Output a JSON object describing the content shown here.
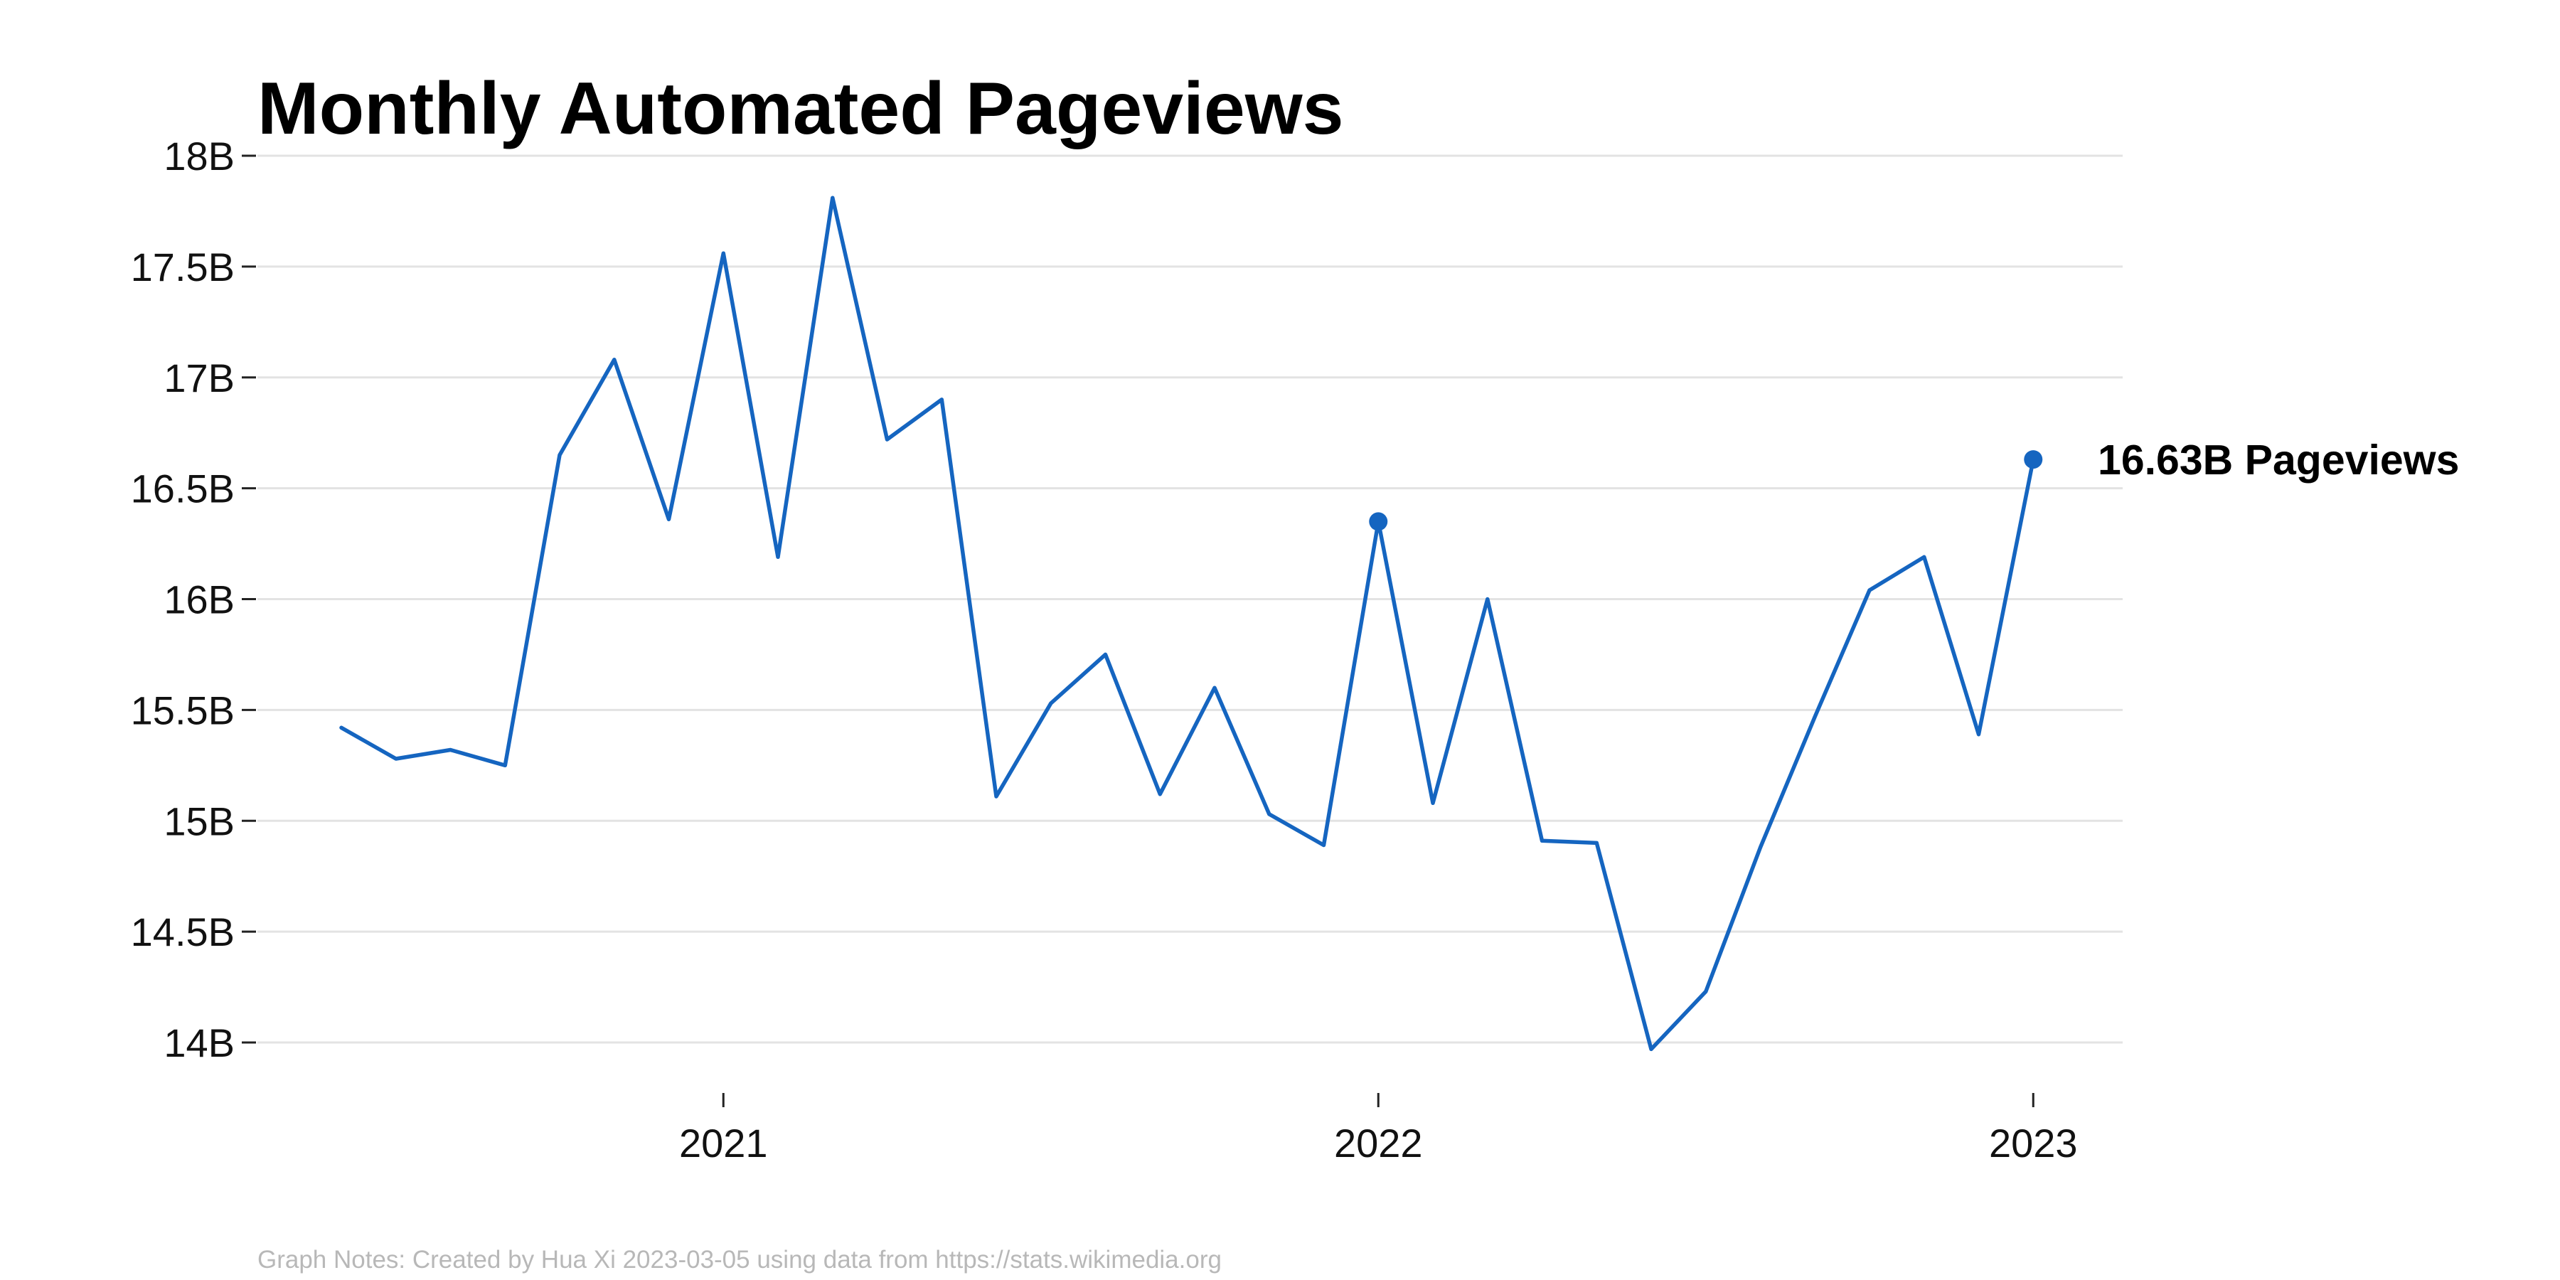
{
  "chart_data": {
    "type": "line",
    "title": "Monthly Automated Pageviews",
    "xlabel": "",
    "ylabel": "",
    "x": [
      "2020-06",
      "2020-07",
      "2020-08",
      "2020-09",
      "2020-10",
      "2020-11",
      "2020-12",
      "2021-01",
      "2021-02",
      "2021-03",
      "2021-04",
      "2021-05",
      "2021-06",
      "2021-07",
      "2021-08",
      "2021-09",
      "2021-10",
      "2021-11",
      "2021-12",
      "2022-01",
      "2022-02",
      "2022-03",
      "2022-04",
      "2022-05",
      "2022-06",
      "2022-07",
      "2022-08",
      "2022-09",
      "2022-10",
      "2022-11",
      "2022-12",
      "2023-01"
    ],
    "series": [
      {
        "values": [
          15.42,
          15.28,
          15.32,
          15.25,
          16.65,
          17.08,
          16.36,
          17.56,
          16.19,
          17.81,
          16.72,
          16.9,
          15.11,
          15.53,
          15.75,
          15.12,
          15.6,
          15.03,
          14.89,
          16.35,
          15.08,
          16.0,
          14.91,
          14.9,
          13.97,
          14.23,
          14.88,
          15.47,
          16.04,
          16.19,
          15.39,
          16.63
        ],
        "color": "#1565c0"
      }
    ],
    "ylim": [
      14,
      18
    ],
    "y_ticks": [
      14,
      14.5,
      15,
      15.5,
      16,
      16.5,
      17,
      17.5,
      18
    ],
    "y_tick_labels": [
      "14B",
      "14.5B",
      "15B",
      "15.5B",
      "16B",
      "16.5B",
      "17B",
      "17.5B",
      "18B"
    ],
    "x_ticks": [
      "2021-01",
      "2022-01",
      "2023-01"
    ],
    "x_tick_labels": [
      "2021",
      "2022",
      "2023"
    ],
    "highlight_points": [
      "2022-01",
      "2023-01"
    ],
    "annotation": "16.63B Pageviews",
    "grid": true,
    "note": "Graph Notes: Created by Hua Xi 2023-03-05 using data from https://stats.wikimedia.org"
  }
}
